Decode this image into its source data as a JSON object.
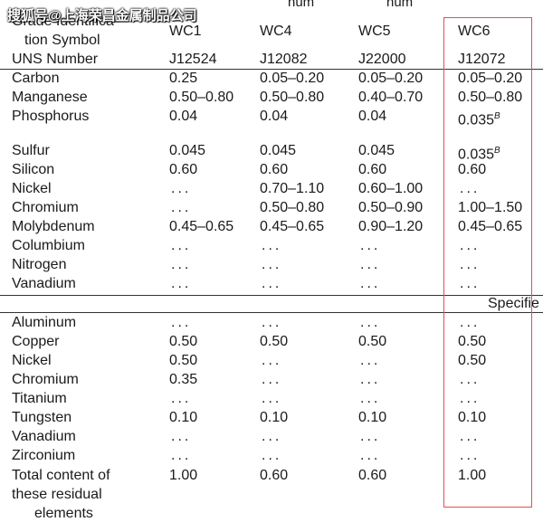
{
  "watermark": "搜狐号@上海荣昌金属制品公司",
  "header": {
    "grade_line1": "Grade Identifica-",
    "grade_line2": "tion Symbol",
    "uns_label": "UNS Number",
    "partial_top_left": "num",
    "partial_top_right": "num",
    "columns": [
      {
        "grade": "WC1",
        "uns": "J12524"
      },
      {
        "grade": "WC4",
        "uns": "J12082"
      },
      {
        "grade": "WC5",
        "uns": "J22000"
      },
      {
        "grade": "WC6",
        "uns": "J12072"
      }
    ]
  },
  "composition": [
    {
      "element": "Carbon",
      "values": [
        "0.25",
        "0.05–0.20",
        "0.05–0.20",
        "0.05–0.20"
      ]
    },
    {
      "element": "Manganese",
      "values": [
        "0.50–0.80",
        "0.50–0.80",
        "0.40–0.70",
        "0.50–0.80"
      ]
    },
    {
      "element": "Phosphorus",
      "values": [
        "0.04",
        "0.04",
        "0.04",
        "0.035"
      ],
      "sup4": "B"
    },
    {
      "element": "Sulfur",
      "values": [
        "0.045",
        "0.045",
        "0.045",
        "0.035"
      ],
      "sup4": "B"
    },
    {
      "element": "Silicon",
      "values": [
        "0.60",
        "0.60",
        "0.60",
        "0.60"
      ]
    },
    {
      "element": "Nickel",
      "values": [
        "...",
        "0.70–1.10",
        "0.60–1.00",
        "..."
      ]
    },
    {
      "element": "Chromium",
      "values": [
        "...",
        "0.50–0.80",
        "0.50–0.90",
        "1.00–1.50"
      ]
    },
    {
      "element": "Molybdenum",
      "values": [
        "0.45–0.65",
        "0.45–0.65",
        "0.90–1.20",
        "0.45–0.65"
      ]
    },
    {
      "element": "Columbium",
      "values": [
        "...",
        "...",
        "...",
        "..."
      ]
    },
    {
      "element": "Nitrogen",
      "values": [
        "...",
        "...",
        "...",
        "..."
      ]
    },
    {
      "element": "Vanadium",
      "values": [
        "...",
        "...",
        "...",
        "..."
      ]
    }
  ],
  "specified_label": "Specifie",
  "residual": [
    {
      "element": "Aluminum",
      "values": [
        "...",
        "...",
        "...",
        "..."
      ]
    },
    {
      "element": "Copper",
      "values": [
        "0.50",
        "0.50",
        "0.50",
        "0.50"
      ]
    },
    {
      "element": "Nickel",
      "values": [
        "0.50",
        "...",
        "...",
        "0.50"
      ]
    },
    {
      "element": "Chromium",
      "values": [
        "0.35",
        "...",
        "...",
        "..."
      ]
    },
    {
      "element": "Titanium",
      "values": [
        "...",
        "...",
        "...",
        "..."
      ]
    },
    {
      "element": "Tungsten",
      "values": [
        "0.10",
        "0.10",
        "0.10",
        "0.10"
      ]
    },
    {
      "element": "Vanadium",
      "values": [
        "...",
        "...",
        "...",
        "..."
      ]
    },
    {
      "element": "Zirconium",
      "values": [
        "...",
        "...",
        "...",
        "..."
      ]
    }
  ],
  "total": {
    "line1": "Total content of",
    "line2": "these residual",
    "line3": "elements",
    "values": [
      "1.00",
      "0.60",
      "0.60",
      "1.00"
    ]
  },
  "colors": {
    "annotation_box": "#e05050",
    "rule": "#333333"
  }
}
